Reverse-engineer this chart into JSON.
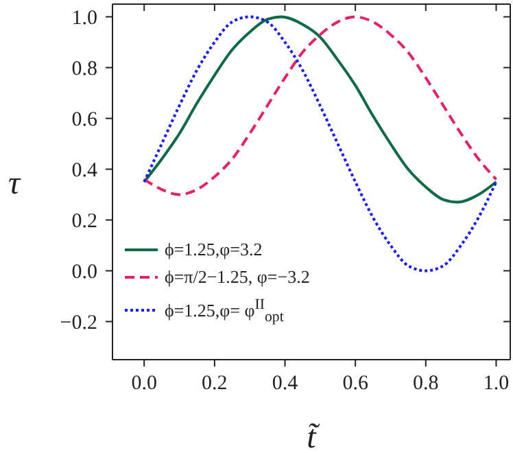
{
  "chart_data": {
    "type": "line",
    "xlabel": "t̃",
    "ylabel": "τ",
    "xlim": [
      -0.09,
      1.04
    ],
    "ylim": [
      -0.35,
      1.05
    ],
    "xticks": [
      {
        "value": 0,
        "label": "0.0"
      },
      0.2,
      0.4,
      0.6,
      0.8,
      {
        "value": 1,
        "label": "1.0"
      }
    ],
    "yticks": [
      -0.2,
      {
        "value": 0,
        "label": "0.0"
      },
      0.2,
      0.4,
      0.6,
      0.8,
      {
        "value": 1,
        "label": "1.0"
      }
    ],
    "legend": "bottom left",
    "marker": "none",
    "series": [
      {
        "name": "ϕ=1.25,φ=3.2",
        "color": "#0f6b45",
        "line_style": "solid",
        "x": [
          0,
          0.05,
          0.1,
          0.15,
          0.2,
          0.25,
          0.3,
          0.35,
          0.39,
          0.45,
          0.5,
          0.55,
          0.6,
          0.65,
          0.7,
          0.75,
          0.8,
          0.85,
          0.89,
          0.95,
          1
        ],
        "values": [
          0.35,
          0.44,
          0.54,
          0.66,
          0.77,
          0.87,
          0.94,
          0.99,
          1.0,
          0.97,
          0.92,
          0.83,
          0.73,
          0.61,
          0.5,
          0.4,
          0.33,
          0.28,
          0.27,
          0.3,
          0.35
        ]
      },
      {
        "name": "ϕ=π/2−1.25, φ=−3.2",
        "color": "#e8206a",
        "line_style": "dashed",
        "x": [
          0,
          0.05,
          0.1,
          0.15,
          0.2,
          0.25,
          0.3,
          0.35,
          0.4,
          0.45,
          0.5,
          0.55,
          0.6,
          0.65,
          0.7,
          0.75,
          0.8,
          0.85,
          0.9,
          0.95,
          1
        ],
        "values": [
          0.36,
          0.32,
          0.3,
          0.32,
          0.37,
          0.44,
          0.54,
          0.65,
          0.76,
          0.86,
          0.93,
          0.98,
          1.0,
          0.98,
          0.93,
          0.86,
          0.76,
          0.65,
          0.54,
          0.44,
          0.36
        ]
      },
      {
        "name": "ϕ=1.25,φ= φ$^{II}$$_{opt}$",
        "color": "#1a1aff",
        "line_style": "dotted",
        "x": [
          0,
          0.05,
          0.1,
          0.15,
          0.2,
          0.25,
          0.3,
          0.35,
          0.4,
          0.45,
          0.5,
          0.55,
          0.6,
          0.65,
          0.7,
          0.75,
          0.8,
          0.85,
          0.9,
          0.95,
          1
        ],
        "values": [
          0.35,
          0.5,
          0.65,
          0.79,
          0.9,
          0.98,
          1.0,
          0.98,
          0.9,
          0.79,
          0.65,
          0.5,
          0.35,
          0.21,
          0.1,
          0.02,
          0.0,
          0.02,
          0.1,
          0.21,
          0.35
        ]
      }
    ]
  }
}
